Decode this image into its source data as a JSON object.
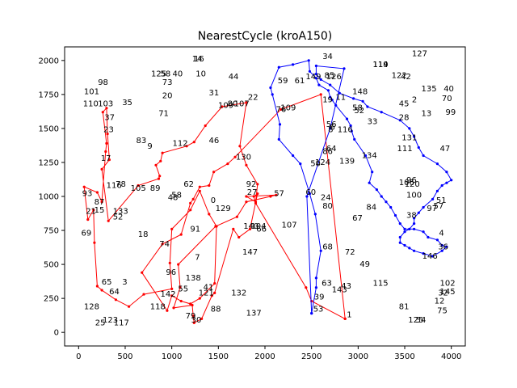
{
  "chart_data": {
    "type": "line",
    "title": "NearestCycle (kroA150)",
    "xlabel": "",
    "ylabel": "",
    "xlim": [
      -150,
      4150
    ],
    "ylim": [
      -100,
      2100
    ],
    "xticks": [
      0,
      500,
      1000,
      1500,
      2000,
      2500,
      3000,
      3500,
      4000
    ],
    "yticks": [
      0,
      250,
      500,
      750,
      1000,
      1250,
      1500,
      1750,
      2000
    ],
    "grid": false,
    "colors": {
      "red": "#ff0000",
      "blue": "#0000ff"
    },
    "series": [
      {
        "color": "#ff0000",
        "x": [
          2860,
          2500,
          2440,
          1900,
          1880,
          1920,
          1840,
          1720,
          1660,
          1460,
          1430,
          1320,
          1240,
          1230,
          1220,
          1020,
          1090,
          1070,
          1470,
          1700,
          1800,
          2060,
          2120,
          1800,
          1900,
          1920,
          1800,
          1730,
          1800,
          1540,
          1360,
          1240,
          1160,
          900,
          880,
          830,
          870,
          860,
          640,
          320,
          250,
          330,
          310,
          300,
          260,
          300,
          290,
          250,
          200,
          60,
          100,
          160,
          170,
          200,
          250,
          400,
          540,
          700,
          1000,
          980,
          1000,
          1200,
          1300,
          1400,
          1480,
          1460,
          1300,
          1200,
          1100,
          1000,
          950,
          680,
          900,
          1100,
          1200,
          1230,
          1300,
          1400,
          1450,
          1600,
          1680,
          2170,
          2600,
          2860
        ],
        "y": [
          100,
          230,
          330,
          950,
          1000,
          1020,
          760,
          700,
          760,
          290,
          270,
          100,
          70,
          120,
          200,
          180,
          330,
          500,
          780,
          850,
          960,
          1000,
          1010,
          1000,
          960,
          1090,
          1230,
          1370,
          1690,
          1660,
          1520,
          1400,
          1370,
          1320,
          1260,
          1230,
          1150,
          1130,
          1080,
          820,
          1200,
          1270,
          1460,
          1650,
          1620,
          1390,
          1330,
          960,
          1030,
          1070,
          830,
          900,
          660,
          340,
          310,
          240,
          190,
          280,
          320,
          510,
          760,
          900,
          1040,
          870,
          780,
          360,
          250,
          210,
          230,
          270,
          160,
          440,
          650,
          720,
          950,
          980,
          1070,
          1080,
          1180,
          1240,
          1290,
          1640,
          1750,
          100
        ]
      },
      {
        "color": "#0000ff",
        "x": [
          2500,
          2550,
          2550,
          2600,
          2540,
          2480,
          2380,
          2300,
          2150,
          2160,
          2080,
          2060,
          2150,
          2300,
          2470,
          2480,
          2550,
          2580,
          2680,
          2700,
          2720,
          2760,
          2880,
          2920,
          2930,
          2960,
          3080,
          3150,
          3120,
          3200,
          3250,
          3300,
          3350,
          3400,
          3450,
          3500,
          3600,
          3700,
          3750,
          3850,
          3900,
          3950,
          3900,
          3800,
          3700,
          3600,
          3550,
          3500,
          3450,
          3450,
          3500,
          3550,
          3600,
          3600,
          3650,
          3700,
          3800,
          3850,
          3900,
          3950,
          4000,
          3950,
          3850,
          3700,
          3650,
          3600,
          3550,
          3450,
          3250,
          3100,
          3050,
          2950,
          2800,
          2700,
          2600,
          2550,
          2550,
          2850,
          2700,
          2450,
          2500
        ],
        "y": [
          140,
          330,
          400,
          600,
          870,
          1020,
          1240,
          1300,
          1420,
          1530,
          1750,
          1800,
          1950,
          1970,
          2000,
          1920,
          1870,
          1820,
          1780,
          1730,
          1710,
          1670,
          1570,
          1520,
          1480,
          1420,
          1300,
          1180,
          1100,
          1050,
          1000,
          960,
          920,
          860,
          800,
          760,
          760,
          740,
          700,
          680,
          640,
          630,
          600,
          560,
          580,
          600,
          620,
          640,
          660,
          700,
          740,
          760,
          800,
          840,
          880,
          920,
          980,
          1040,
          1080,
          1100,
          1120,
          1180,
          1240,
          1300,
          1360,
          1440,
          1500,
          1560,
          1620,
          1660,
          1700,
          1720,
          1760,
          1820,
          1860,
          1900,
          1960,
          1940,
          1500,
          1000,
          140
        ]
      }
    ],
    "points": [
      {
        "label": "1",
        "x": 2860,
        "y": 100
      },
      {
        "label": "53",
        "x": 2500,
        "y": 140
      },
      {
        "label": "39",
        "x": 2510,
        "y": 230
      },
      {
        "label": "63",
        "x": 2590,
        "y": 330
      },
      {
        "label": "143",
        "x": 2700,
        "y": 285
      },
      {
        "label": "43",
        "x": 2800,
        "y": 310
      },
      {
        "label": "115",
        "x": 3140,
        "y": 330
      },
      {
        "label": "81",
        "x": 3420,
        "y": 160
      },
      {
        "label": "125",
        "x": 3520,
        "y": 60
      },
      {
        "label": "54",
        "x": 3600,
        "y": 60
      },
      {
        "label": "75",
        "x": 3830,
        "y": 130
      },
      {
        "label": "12",
        "x": 3800,
        "y": 200
      },
      {
        "label": "32",
        "x": 3840,
        "y": 260
      },
      {
        "label": "145",
        "x": 3860,
        "y": 270
      },
      {
        "label": "102",
        "x": 3860,
        "y": 330
      },
      {
        "label": "72",
        "x": 2840,
        "y": 560
      },
      {
        "label": "49",
        "x": 3000,
        "y": 470
      },
      {
        "label": "68",
        "x": 2600,
        "y": 600
      },
      {
        "label": "67",
        "x": 2920,
        "y": 810
      },
      {
        "label": "84",
        "x": 3070,
        "y": 890
      },
      {
        "label": "146",
        "x": 3670,
        "y": 530
      },
      {
        "label": "36",
        "x": 3840,
        "y": 600
      },
      {
        "label": "4",
        "x": 3850,
        "y": 700
      },
      {
        "label": "38",
        "x": 3500,
        "y": 830
      },
      {
        "label": "100",
        "x": 3500,
        "y": 980
      },
      {
        "label": "97",
        "x": 3720,
        "y": 880
      },
      {
        "label": "57",
        "x": 3790,
        "y": 900
      },
      {
        "label": "51",
        "x": 3820,
        "y": 940
      },
      {
        "label": "106",
        "x": 3420,
        "y": 1070
      },
      {
        "label": "120",
        "x": 3480,
        "y": 1060
      },
      {
        "label": "96",
        "x": 3500,
        "y": 1090
      },
      {
        "label": "47",
        "x": 3860,
        "y": 1320
      },
      {
        "label": "111",
        "x": 3400,
        "y": 1320
      },
      {
        "label": "131",
        "x": 3450,
        "y": 1400
      },
      {
        "label": "28",
        "x": 3420,
        "y": 1550
      },
      {
        "label": "13",
        "x": 3660,
        "y": 1580
      },
      {
        "label": "99",
        "x": 3920,
        "y": 1590
      },
      {
        "label": "70",
        "x": 3880,
        "y": 1690
      },
      {
        "label": "40",
        "x": 3900,
        "y": 1760
      },
      {
        "label": "135",
        "x": 3660,
        "y": 1760
      },
      {
        "label": "45",
        "x": 3420,
        "y": 1650
      },
      {
        "label": "2",
        "x": 3560,
        "y": 1680
      },
      {
        "label": "42",
        "x": 3440,
        "y": 1850
      },
      {
        "label": "122",
        "x": 3340,
        "y": 1860
      },
      {
        "label": "127",
        "x": 3560,
        "y": 2020
      },
      {
        "label": "119",
        "x": 3140,
        "y": 1940
      },
      {
        "label": "114",
        "x": 3140,
        "y": 1940
      },
      {
        "label": "148",
        "x": 2920,
        "y": 1740
      },
      {
        "label": "58",
        "x": 2920,
        "y": 1620
      },
      {
        "label": "52",
        "x": 2940,
        "y": 1600
      },
      {
        "label": "33",
        "x": 3080,
        "y": 1520
      },
      {
        "label": "11",
        "x": 2740,
        "y": 1700
      },
      {
        "label": "19",
        "x": 2600,
        "y": 1680
      },
      {
        "label": "34",
        "x": 2600,
        "y": 2000
      },
      {
        "label": "126",
        "x": 2640,
        "y": 1850
      },
      {
        "label": "85",
        "x": 2620,
        "y": 1860
      },
      {
        "label": "149",
        "x": 2420,
        "y": 1850
      },
      {
        "label": "61",
        "x": 2300,
        "y": 1820
      },
      {
        "label": "59",
        "x": 2120,
        "y": 1820
      },
      {
        "label": "76",
        "x": 2100,
        "y": 1610
      },
      {
        "label": "109",
        "x": 2150,
        "y": 1620
      },
      {
        "label": "56",
        "x": 2640,
        "y": 1500
      },
      {
        "label": "6",
        "x": 2680,
        "y": 1480
      },
      {
        "label": "8",
        "x": 2660,
        "y": 1460
      },
      {
        "label": "116",
        "x": 2760,
        "y": 1460
      },
      {
        "label": "86",
        "x": 2600,
        "y": 1300
      },
      {
        "label": "64",
        "x": 2640,
        "y": 1320
      },
      {
        "label": "139",
        "x": 2780,
        "y": 1230
      },
      {
        "label": "134",
        "x": 3020,
        "y": 1270
      },
      {
        "label": "50",
        "x": 2470,
        "y": 1210
      },
      {
        "label": "124",
        "x": 2520,
        "y": 1220
      },
      {
        "label": "60",
        "x": 2420,
        "y": 1000
      },
      {
        "label": "24",
        "x": 2580,
        "y": 960
      },
      {
        "label": "80",
        "x": 2600,
        "y": 900
      },
      {
        "label": "57",
        "x": 2080,
        "y": 990
      },
      {
        "label": "107",
        "x": 2160,
        "y": 760
      },
      {
        "label": "128",
        "x": 40,
        "y": 160
      },
      {
        "label": "25",
        "x": 160,
        "y": 40
      },
      {
        "label": "123",
        "x": 240,
        "y": 60
      },
      {
        "label": "117",
        "x": 360,
        "y": 40
      },
      {
        "label": "65",
        "x": 230,
        "y": 340
      },
      {
        "label": "64",
        "x": 310,
        "y": 270
      },
      {
        "label": "3",
        "x": 450,
        "y": 340
      },
      {
        "label": "118",
        "x": 750,
        "y": 160
      },
      {
        "label": "96",
        "x": 920,
        "y": 410
      },
      {
        "label": "142",
        "x": 860,
        "y": 250
      },
      {
        "label": "55",
        "x": 1050,
        "y": 290
      },
      {
        "label": "138",
        "x": 1130,
        "y": 370
      },
      {
        "label": "121",
        "x": 1270,
        "y": 260
      },
      {
        "label": "41",
        "x": 1320,
        "y": 300
      },
      {
        "label": "79",
        "x": 1130,
        "y": 90
      },
      {
        "label": "30",
        "x": 1190,
        "y": 60
      },
      {
        "label": "88",
        "x": 1400,
        "y": 140
      },
      {
        "label": "132",
        "x": 1620,
        "y": 260
      },
      {
        "label": "137",
        "x": 1780,
        "y": 110
      },
      {
        "label": "7",
        "x": 1230,
        "y": 520
      },
      {
        "label": "74",
        "x": 850,
        "y": 620
      },
      {
        "label": "18",
        "x": 620,
        "y": 690
      },
      {
        "label": "91",
        "x": 1180,
        "y": 730
      },
      {
        "label": "129",
        "x": 1450,
        "y": 880
      },
      {
        "label": "0",
        "x": 1400,
        "y": 940
      },
      {
        "label": "48",
        "x": 940,
        "y": 960
      },
      {
        "label": "58",
        "x": 980,
        "y": 980
      },
      {
        "label": "62",
        "x": 1110,
        "y": 1060
      },
      {
        "label": "89",
        "x": 750,
        "y": 1030
      },
      {
        "label": "105",
        "x": 540,
        "y": 1030
      },
      {
        "label": "78",
        "x": 380,
        "y": 1060
      },
      {
        "label": "116",
        "x": 280,
        "y": 1050
      },
      {
        "label": "133",
        "x": 350,
        "y": 860
      },
      {
        "label": "52",
        "x": 350,
        "y": 820
      },
      {
        "label": "87",
        "x": 150,
        "y": 930
      },
      {
        "label": "15",
        "x": 150,
        "y": 870
      },
      {
        "label": "21",
        "x": 60,
        "y": 860
      },
      {
        "label": "93",
        "x": 20,
        "y": 990
      },
      {
        "label": "69",
        "x": 10,
        "y": 700
      },
      {
        "label": "17",
        "x": 220,
        "y": 1250
      },
      {
        "label": "23",
        "x": 250,
        "y": 1460
      },
      {
        "label": "37",
        "x": 260,
        "y": 1550
      },
      {
        "label": "83",
        "x": 600,
        "y": 1380
      },
      {
        "label": "9",
        "x": 720,
        "y": 1340
      },
      {
        "label": "71",
        "x": 840,
        "y": 1580
      },
      {
        "label": "112",
        "x": 990,
        "y": 1360
      },
      {
        "label": "46",
        "x": 1380,
        "y": 1380
      },
      {
        "label": "130",
        "x": 1670,
        "y": 1260
      },
      {
        "label": "92",
        "x": 1780,
        "y": 1060
      },
      {
        "label": "27",
        "x": 1790,
        "y": 1000
      },
      {
        "label": "140",
        "x": 1750,
        "y": 750
      },
      {
        "label": "104",
        "x": 1830,
        "y": 750
      },
      {
        "label": "66",
        "x": 1890,
        "y": 730
      },
      {
        "label": "147",
        "x": 1740,
        "y": 560
      },
      {
        "label": "35",
        "x": 450,
        "y": 1660
      },
      {
        "label": "103",
        "x": 190,
        "y": 1650
      },
      {
        "label": "110",
        "x": 30,
        "y": 1650
      },
      {
        "label": "101",
        "x": 40,
        "y": 1740
      },
      {
        "label": "98",
        "x": 190,
        "y": 1810
      },
      {
        "label": "125",
        "x": 760,
        "y": 1870
      },
      {
        "label": "58",
        "x": 860,
        "y": 1870
      },
      {
        "label": "40",
        "x": 990,
        "y": 1870
      },
      {
        "label": "73",
        "x": 880,
        "y": 1810
      },
      {
        "label": "20",
        "x": 880,
        "y": 1710
      },
      {
        "label": "14",
        "x": 1200,
        "y": 1980
      },
      {
        "label": "10",
        "x": 1240,
        "y": 1870
      },
      {
        "label": "16",
        "x": 1220,
        "y": 1980
      },
      {
        "label": "31",
        "x": 1380,
        "y": 1730
      },
      {
        "label": "109",
        "x": 1480,
        "y": 1640
      },
      {
        "label": "80",
        "x": 1580,
        "y": 1650
      },
      {
        "label": "107",
        "x": 1650,
        "y": 1650
      },
      {
        "label": "44",
        "x": 1590,
        "y": 1850
      },
      {
        "label": "22",
        "x": 1800,
        "y": 1700
      }
    ]
  }
}
